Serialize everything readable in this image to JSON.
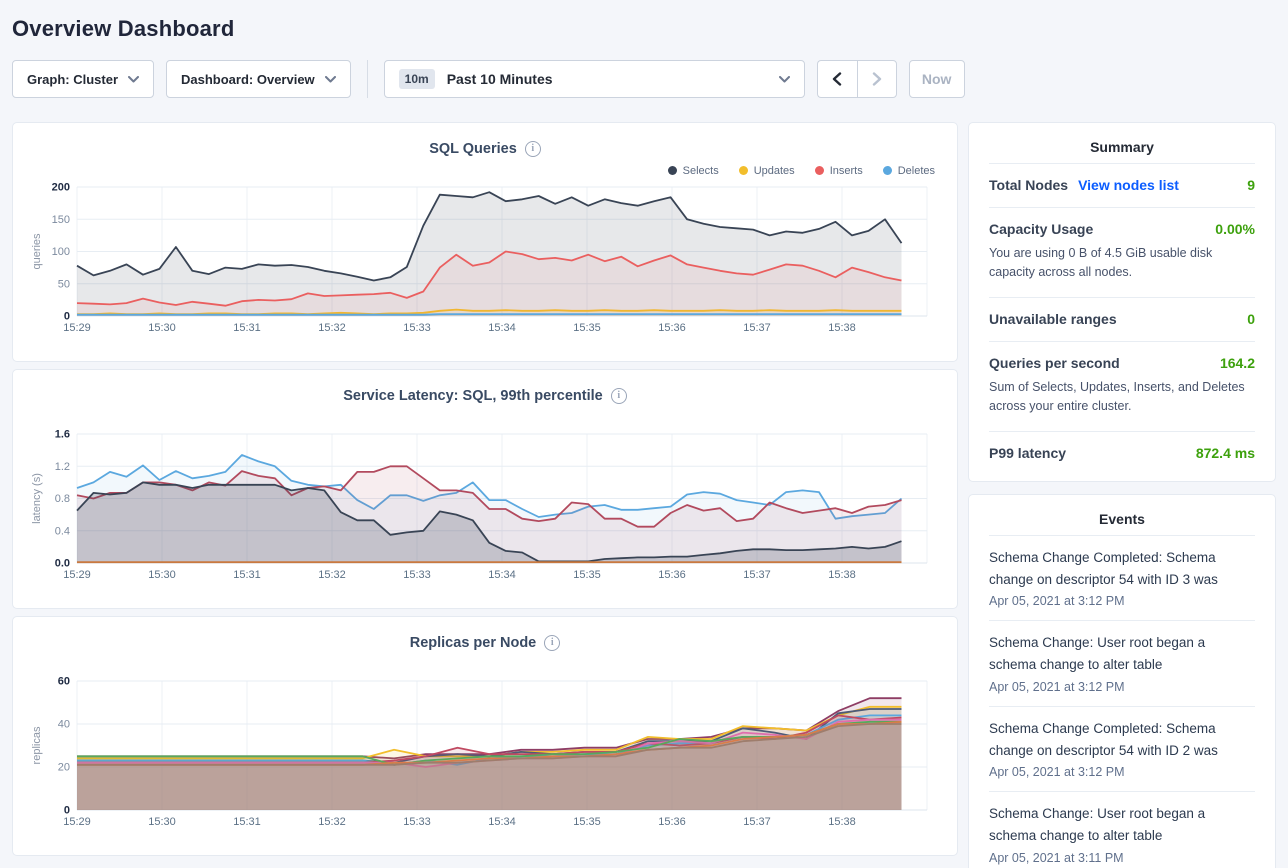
{
  "page": {
    "title": "Overview Dashboard"
  },
  "toolbar": {
    "graph_dropdown": "Graph: Cluster",
    "dashboard_dropdown": "Dashboard: Overview",
    "time_badge": "10m",
    "time_label": "Past 10 Minutes",
    "now_button": "Now"
  },
  "summary": {
    "title": "Summary",
    "rows": [
      {
        "label": "Total Nodes",
        "link": "View nodes list",
        "value": "9"
      },
      {
        "label": "Capacity Usage",
        "value": "0.00%",
        "description": "You are using 0 B of 4.5 GiB usable disk capacity across all nodes."
      },
      {
        "label": "Unavailable ranges",
        "value": "0"
      },
      {
        "label": "Queries per second",
        "value": "164.2",
        "description": "Sum of Selects, Updates, Inserts, and Deletes across your entire cluster."
      },
      {
        "label": "P99 latency",
        "value": "872.4 ms"
      }
    ]
  },
  "events": {
    "title": "Events",
    "items": [
      {
        "message": "Schema Change Completed: Schema change on descriptor 54 with ID 3 was",
        "timestamp": "Apr 05, 2021 at 3:12 PM"
      },
      {
        "message": "Schema Change: User root began a schema change to alter table",
        "timestamp": "Apr 05, 2021 at 3:12 PM"
      },
      {
        "message": "Schema Change Completed: Schema change on descriptor 54 with ID 2 was",
        "timestamp": "Apr 05, 2021 at 3:12 PM"
      },
      {
        "message": "Schema Change: User root began a schema change to alter table",
        "timestamp": "Apr 05, 2021 at 3:11 PM"
      }
    ]
  },
  "chart_data": [
    {
      "type": "area",
      "title": "SQL Queries",
      "ylabel": "queries",
      "ylim": [
        0,
        200
      ],
      "ytick_values": [
        0,
        50,
        100,
        150,
        200
      ],
      "ytick_labels": [
        "0",
        "50",
        "100",
        "150",
        "200"
      ],
      "x_labels": [
        "15:29",
        "15:30",
        "15:31",
        "15:32",
        "15:33",
        "15:34",
        "15:35",
        "15:36",
        "15:37",
        "15:38"
      ],
      "x_total_minutes": 10,
      "x_data_span_minutes": 9.7,
      "legend_visible": true,
      "grid": true,
      "series": [
        {
          "name": "Selects",
          "color": "#394455",
          "fill_opacity": 0.12,
          "values": [
            78,
            63,
            70,
            80,
            64,
            73,
            107,
            70,
            65,
            75,
            73,
            80,
            78,
            79,
            76,
            70,
            66,
            61,
            55,
            60,
            76,
            140,
            188,
            186,
            184,
            192,
            178,
            181,
            186,
            174,
            184,
            171,
            181,
            175,
            171,
            178,
            184,
            150,
            143,
            138,
            136,
            134,
            125,
            131,
            129,
            135,
            146,
            125,
            132,
            150,
            113
          ]
        },
        {
          "name": "Updates",
          "color": "#f2be2c",
          "fill_opacity": 0.1,
          "values": [
            3,
            3,
            4,
            3,
            3,
            4,
            3,
            3,
            4,
            4,
            3,
            3,
            4,
            4,
            3,
            4,
            5,
            4,
            3,
            4,
            4,
            5,
            8,
            10,
            8,
            8,
            9,
            8,
            8,
            9,
            8,
            8,
            9,
            8,
            8,
            9,
            8,
            8,
            8,
            9,
            8,
            8,
            9,
            8,
            8,
            8,
            9,
            8,
            8,
            8,
            8
          ]
        },
        {
          "name": "Inserts",
          "color": "#ea5f5f",
          "fill_opacity": 0.08,
          "values": [
            20,
            19,
            18,
            20,
            27,
            21,
            17,
            22,
            19,
            16,
            23,
            25,
            24,
            26,
            35,
            31,
            32,
            33,
            34,
            36,
            28,
            38,
            75,
            95,
            78,
            83,
            100,
            96,
            88,
            90,
            86,
            95,
            85,
            92,
            77,
            86,
            94,
            80,
            75,
            70,
            66,
            64,
            72,
            80,
            78,
            70,
            60,
            75,
            68,
            60,
            55
          ]
        },
        {
          "name": "Deletes",
          "color": "#5ba8df",
          "fill_opacity": 0.1,
          "values": [
            2,
            2,
            2,
            2,
            2,
            2,
            2,
            2,
            2,
            2,
            2,
            2,
            2,
            2,
            2,
            2,
            2,
            2,
            2,
            2,
            2,
            2,
            3,
            3,
            3,
            3,
            3,
            3,
            3,
            3,
            3,
            3,
            3,
            3,
            3,
            3,
            3,
            3,
            3,
            3,
            3,
            3,
            3,
            3,
            3,
            3,
            3,
            3,
            3,
            3,
            3
          ]
        }
      ]
    },
    {
      "type": "area",
      "title": "Service Latency: SQL, 99th percentile",
      "ylabel": "latency (s)",
      "ylim": [
        0,
        1.6
      ],
      "ytick_values": [
        0,
        0.4,
        0.8,
        1.2,
        1.6
      ],
      "ytick_labels": [
        "0.0",
        "0.4",
        "0.8",
        "1.2",
        "1.6"
      ],
      "x_labels": [
        "15:29",
        "15:30",
        "15:31",
        "15:32",
        "15:33",
        "15:34",
        "15:35",
        "15:36",
        "15:37",
        "15:38"
      ],
      "x_total_minutes": 10,
      "x_data_span_minutes": 9.7,
      "legend_visible": false,
      "grid": true,
      "series": [
        {
          "name": "",
          "color": "#5ba8df",
          "fill_opacity": 0.08,
          "values": [
            0.93,
            1.0,
            1.13,
            1.07,
            1.21,
            1.03,
            1.14,
            1.05,
            1.08,
            1.13,
            1.34,
            1.26,
            1.2,
            1.02,
            0.97,
            0.95,
            0.97,
            0.78,
            0.67,
            0.84,
            0.84,
            0.77,
            0.84,
            0.87,
            1.0,
            0.78,
            0.78,
            0.67,
            0.57,
            0.6,
            0.62,
            0.7,
            0.72,
            0.66,
            0.66,
            0.68,
            0.7,
            0.85,
            0.88,
            0.86,
            0.78,
            0.75,
            0.72,
            0.88,
            0.9,
            0.88,
            0.55,
            0.58,
            0.6,
            0.62,
            0.8
          ]
        },
        {
          "name": "",
          "color": "#b24a5e",
          "fill_opacity": 0.1,
          "values": [
            0.84,
            0.8,
            0.87,
            0.87,
            1.0,
            1.0,
            0.97,
            0.9,
            1.0,
            0.96,
            1.14,
            1.08,
            1.05,
            0.84,
            0.93,
            0.95,
            0.9,
            1.13,
            1.13,
            1.2,
            1.2,
            1.05,
            0.9,
            0.9,
            0.87,
            0.67,
            0.67,
            0.55,
            0.52,
            0.55,
            0.75,
            0.73,
            0.55,
            0.55,
            0.45,
            0.45,
            0.62,
            0.72,
            0.65,
            0.68,
            0.52,
            0.55,
            0.75,
            0.68,
            0.62,
            0.65,
            0.68,
            0.62,
            0.7,
            0.72,
            0.78
          ]
        },
        {
          "name": "",
          "color": "#394455",
          "fill_opacity": 0.22,
          "values": [
            0.65,
            0.87,
            0.85,
            0.87,
            1.0,
            0.97,
            0.97,
            0.93,
            0.97,
            0.97,
            0.97,
            0.97,
            0.97,
            0.9,
            0.93,
            0.9,
            0.63,
            0.53,
            0.53,
            0.35,
            0.38,
            0.4,
            0.64,
            0.6,
            0.53,
            0.25,
            0.15,
            0.13,
            0.02,
            0.02,
            0.02,
            0.02,
            0.05,
            0.06,
            0.07,
            0.07,
            0.08,
            0.08,
            0.1,
            0.12,
            0.15,
            0.17,
            0.17,
            0.16,
            0.16,
            0.17,
            0.18,
            0.2,
            0.18,
            0.2,
            0.27
          ]
        },
        {
          "name": "",
          "color": "#c9793f",
          "fill_opacity": 0,
          "values": [
            0.01,
            0.01,
            0.01,
            0.01,
            0.01,
            0.01,
            0.01,
            0.01,
            0.01,
            0.01,
            0.01
          ]
        }
      ]
    },
    {
      "type": "area",
      "title": "Replicas per Node",
      "ylabel": "replicas",
      "ylim": [
        0,
        60
      ],
      "ytick_values": [
        0,
        20,
        40,
        60
      ],
      "ytick_labels": [
        "0",
        "20",
        "40",
        "60"
      ],
      "x_labels": [
        "15:29",
        "15:30",
        "15:31",
        "15:32",
        "15:33",
        "15:34",
        "15:35",
        "15:36",
        "15:37",
        "15:38"
      ],
      "x_total_minutes": 10,
      "x_data_span_minutes": 9.7,
      "legend_visible": false,
      "grid": true,
      "series": [
        {
          "name": "",
          "color": "#8e3d64",
          "fill_opacity": 0.12,
          "values": [
            25,
            25,
            25,
            25,
            25,
            25,
            25,
            25,
            25,
            25,
            24,
            26,
            26,
            26,
            28,
            28,
            29,
            29,
            33,
            33,
            34,
            38,
            38,
            37,
            46,
            52,
            52
          ]
        },
        {
          "name": "",
          "color": "#f2be2c",
          "fill_opacity": 0.12,
          "values": [
            24,
            24,
            24,
            24,
            24,
            24,
            24,
            24,
            24,
            24,
            28,
            25,
            25,
            25,
            27,
            27,
            28,
            28,
            34,
            33,
            33,
            39,
            38,
            37,
            44,
            48,
            48
          ]
        },
        {
          "name": "",
          "color": "#4e5b77",
          "fill_opacity": 0.12,
          "values": [
            23,
            23,
            23,
            23,
            23,
            23,
            23,
            23,
            23,
            23,
            22,
            25,
            26,
            25,
            27,
            26,
            27,
            27,
            32,
            32,
            32,
            38,
            36,
            33,
            45,
            47,
            47
          ]
        },
        {
          "name": "",
          "color": "#5ba8df",
          "fill_opacity": 0.12,
          "values": [
            23,
            23,
            23,
            23,
            23,
            23,
            23,
            23,
            23,
            23,
            21,
            23,
            21,
            24,
            25,
            25,
            26,
            26,
            30,
            31,
            31,
            34,
            34,
            35,
            42,
            44,
            44
          ]
        },
        {
          "name": "",
          "color": "#c04a62",
          "fill_opacity": 0.12,
          "values": [
            22,
            22,
            22,
            22,
            22,
            22,
            22,
            22,
            22,
            22,
            23,
            25,
            29,
            26,
            26,
            26,
            27,
            27,
            31,
            30,
            31,
            34,
            33,
            36,
            44,
            42,
            43
          ]
        },
        {
          "name": "",
          "color": "#e06ead",
          "fill_opacity": 0.12,
          "values": [
            22,
            22,
            22,
            22,
            22,
            22,
            22,
            22,
            22,
            22,
            22,
            20,
            22,
            23,
            24,
            24,
            25,
            25,
            31,
            32,
            31,
            36,
            35,
            33,
            41,
            42,
            42
          ]
        },
        {
          "name": "",
          "color": "#58a85c",
          "fill_opacity": 0.12,
          "values": [
            25,
            25,
            25,
            25,
            25,
            25,
            25,
            25,
            25,
            25,
            21,
            23,
            24,
            25,
            25,
            26,
            26,
            27,
            29,
            33,
            32,
            34,
            34,
            35,
            40,
            41,
            41
          ]
        },
        {
          "name": "",
          "color": "#d97c4a",
          "fill_opacity": 0.12,
          "values": [
            21,
            21,
            21,
            21,
            21,
            21,
            21,
            21,
            21,
            21,
            22,
            22,
            23,
            24,
            24,
            25,
            25,
            26,
            28,
            29,
            30,
            33,
            34,
            35,
            40,
            40,
            41
          ]
        },
        {
          "name": "",
          "color": "#9e7d6c",
          "fill_opacity": 0.12,
          "values": [
            21,
            21,
            21,
            21,
            21,
            21,
            21,
            21,
            21,
            21,
            21,
            22,
            22,
            23,
            24,
            24,
            25,
            25,
            28,
            29,
            29,
            32,
            33,
            34,
            39,
            40,
            40
          ]
        }
      ]
    }
  ]
}
